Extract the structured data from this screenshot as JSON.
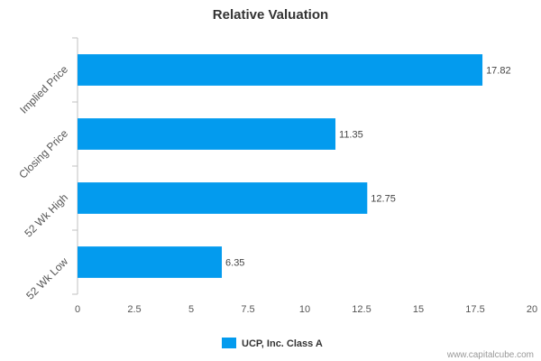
{
  "chart_data": {
    "type": "bar",
    "orientation": "horizontal",
    "title": "Relative Valuation",
    "categories": [
      "Implied Price",
      "Closing Price",
      "52 Wk High",
      "52 Wk Low"
    ],
    "series": [
      {
        "name": "UCP, Inc. Class A",
        "values": [
          17.82,
          11.35,
          12.75,
          6.35
        ]
      }
    ],
    "data_labels": [
      "17.82",
      "11.35",
      "12.75",
      "6.35"
    ],
    "x_ticks": [
      "0",
      "2.5",
      "5",
      "7.5",
      "10",
      "12.5",
      "15",
      "17.5",
      "20"
    ],
    "xlim": [
      0,
      20
    ],
    "grid": false,
    "legend": "bottom-center",
    "bar_color": "#039BEE",
    "credit": "www.capitalcube.com"
  }
}
